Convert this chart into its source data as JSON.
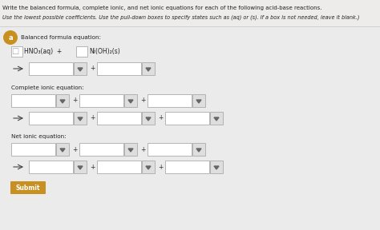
{
  "title_line1": "Write the balanced formula, complete ionic, and net ionic equations for each of the following acid-base reactions.",
  "title_line2": "Use the lowest possible coefficients. Use the pull-down boxes to specify states such as (aq) or (s). If a box is not needed, leave it blank.)",
  "section_label": "a",
  "section_title": "Balanced formula equation:",
  "complete_ionic_label": "Complete ionic equation:",
  "net_ionic_label": "Net ionic equation:",
  "submit_label": "Submit",
  "bg_color": "#eeecea",
  "inner_bg": "#f0eeec",
  "box_color": "#ffffff",
  "box_border": "#aaaaaa",
  "text_color": "#222222",
  "arrow_color": "#444444",
  "section_badge_bg": "#c89020",
  "section_badge_text": "#ffffff",
  "submit_bg": "#c89020",
  "submit_text": "#ffffff",
  "dropdown_bg": "#dedede",
  "plus_color": "#333333",
  "title_fontsize": 5.0,
  "label_fontsize": 5.2,
  "formula_fontsize": 5.5
}
